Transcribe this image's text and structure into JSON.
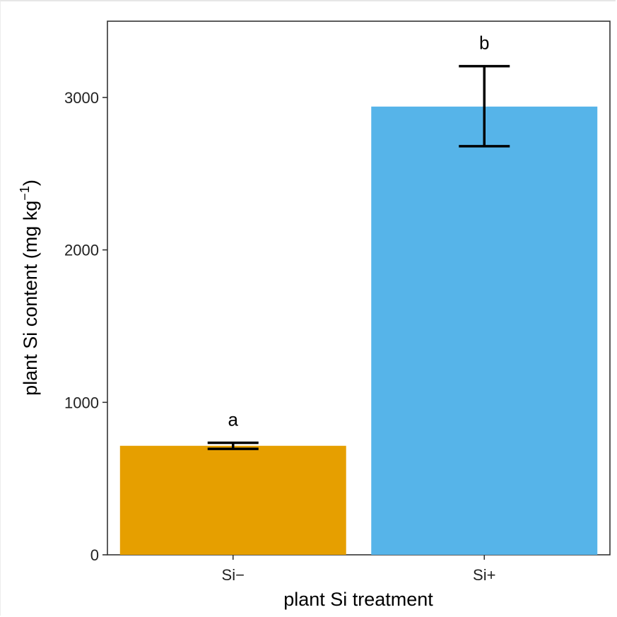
{
  "chart_data": {
    "type": "bar",
    "categories": [
      "Si−",
      "Si+"
    ],
    "values": [
      715,
      2940
    ],
    "error_low": [
      695,
      2680
    ],
    "error_high": [
      735,
      3205
    ],
    "significance": [
      "a",
      "b"
    ],
    "colors": [
      "#E69F00",
      "#56B4E9"
    ],
    "xlabel": "plant Si treatment",
    "ylabel_main": "plant Si content (mg kg",
    "ylabel_sup": "−1",
    "ylabel_end": ")",
    "yticks": [
      0,
      1000,
      2000,
      3000
    ],
    "ylim": [
      0,
      3500
    ],
    "grid": false,
    "legend": "none"
  }
}
